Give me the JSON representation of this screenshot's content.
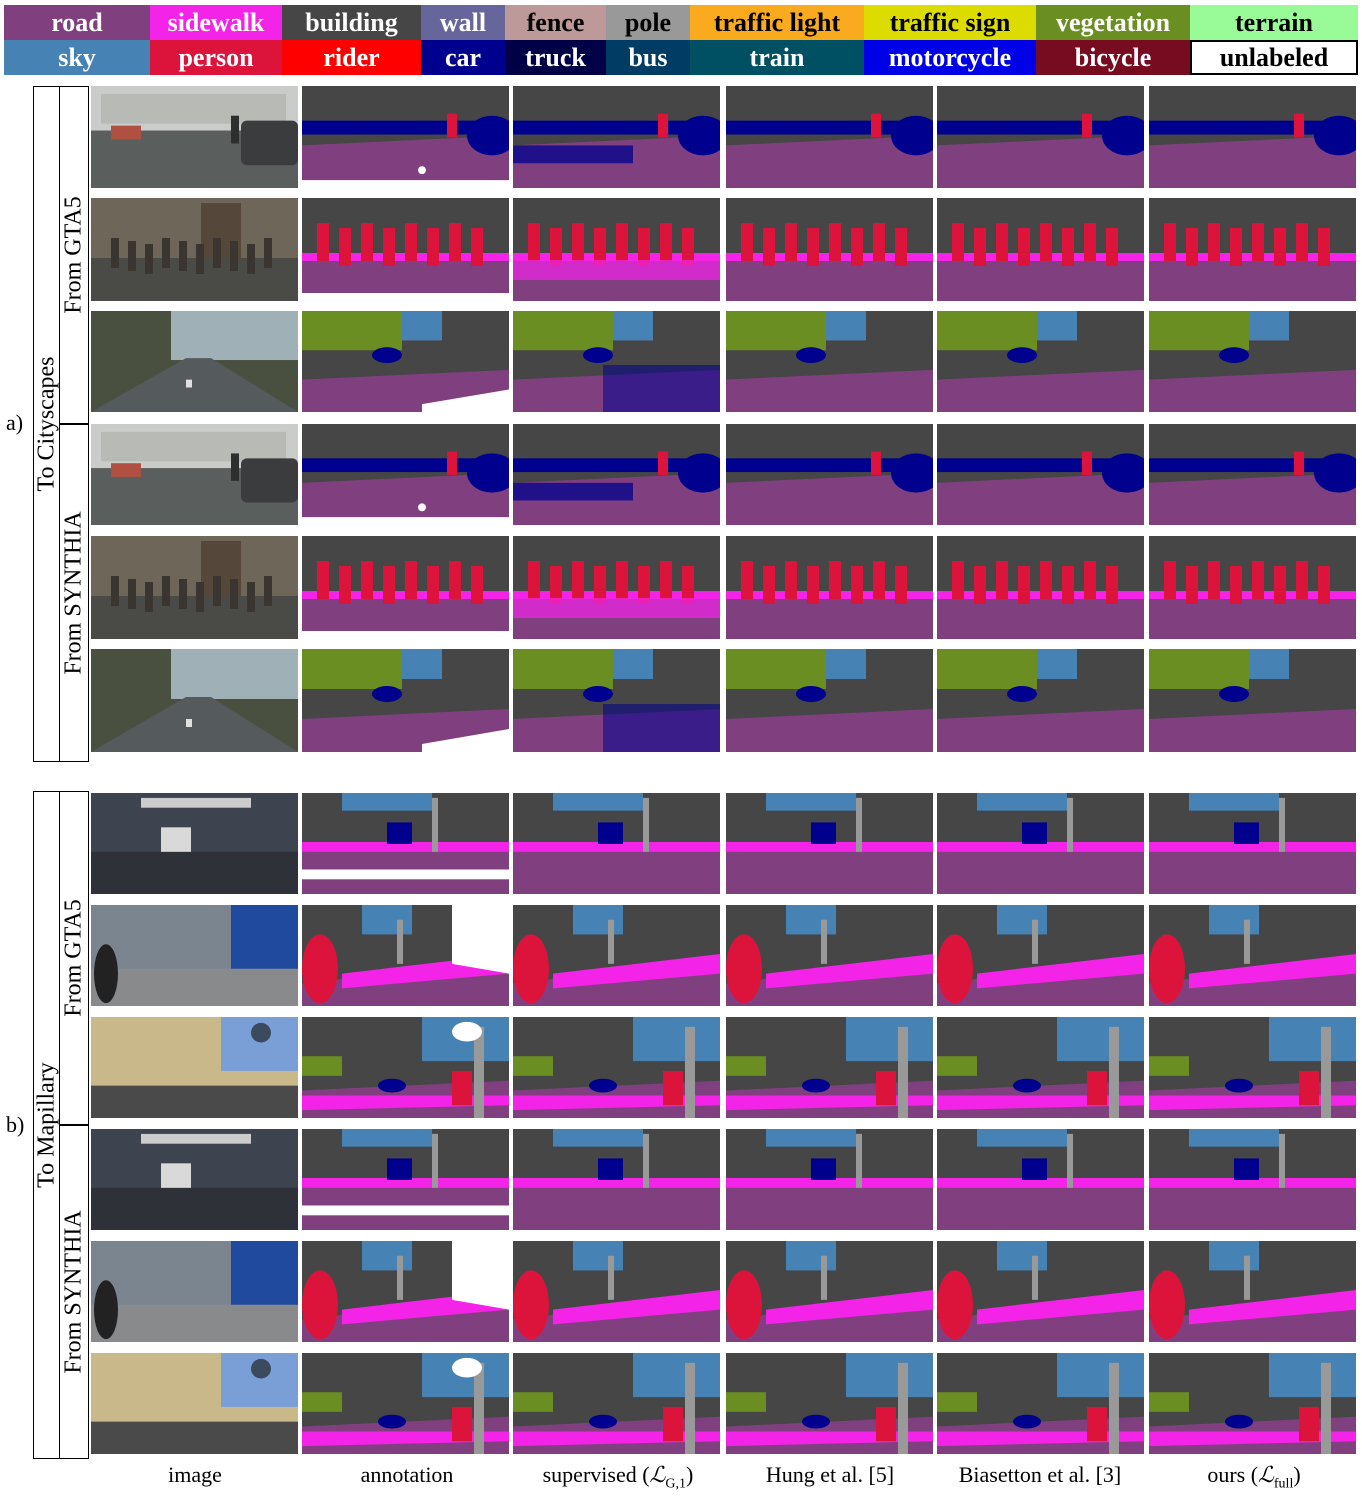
{
  "legend": {
    "row1": [
      {
        "label": "road",
        "color": "#804080"
      },
      {
        "label": "sidewalk",
        "color": "#f423e8"
      },
      {
        "label": "building",
        "color": "#464646"
      },
      {
        "label": "wall",
        "color": "#66669c"
      },
      {
        "label": "fence",
        "color": "#be9999"
      },
      {
        "label": "pole",
        "color": "#999999"
      },
      {
        "label": "traffic light",
        "color": "#faaa1e"
      },
      {
        "label": "traffic sign",
        "color": "#dcdc00"
      },
      {
        "label": "vegetation",
        "color": "#6b8e23"
      },
      {
        "label": "terrain",
        "color": "#98fb98"
      }
    ],
    "row2": [
      {
        "label": "sky",
        "color": "#4682b4"
      },
      {
        "label": "person",
        "color": "#dc143c"
      },
      {
        "label": "rider",
        "color": "#ff0000"
      },
      {
        "label": "car",
        "color": "#00008e"
      },
      {
        "label": "truck",
        "color": "#000046"
      },
      {
        "label": "bus",
        "color": "#003c64"
      },
      {
        "label": "train",
        "color": "#005064"
      },
      {
        "label": "motorcycle",
        "color": "#0000e6"
      },
      {
        "label": "bicycle",
        "color": "#770b20"
      },
      {
        "label": "unlabeled",
        "color": "#ffffff"
      }
    ]
  },
  "sections": {
    "a": {
      "letter": "a)",
      "title": "To Cityscapes",
      "sub1": "From GTA5",
      "sub2": "From SYNTHIA"
    },
    "b": {
      "letter": "b)",
      "title": "To Mapillary",
      "sub1": "From GTA5",
      "sub2": "From SYNTHIA"
    }
  },
  "columns": {
    "image": "image",
    "annotation": "annotation",
    "supervised": "supervised (",
    "supervised_sym": "ℒ",
    "supervised_sub": "G,1",
    "hung": "Hung et al. [5]",
    "biasetton": "Biasetton et al. [3]",
    "ours": "ours (",
    "ours_sym": "ℒ",
    "ours_sub": "full"
  }
}
